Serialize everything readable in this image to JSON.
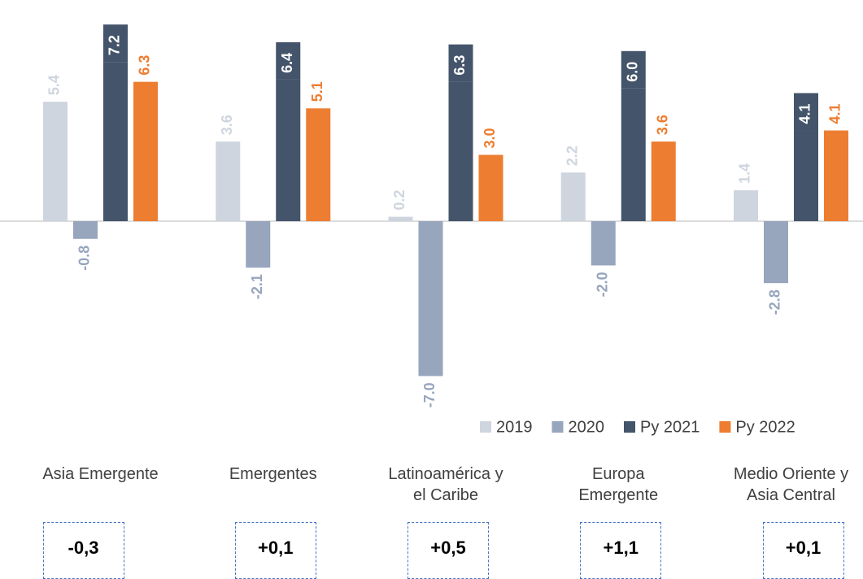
{
  "chart_data": {
    "type": "bar",
    "categories": [
      "Asia Emergente",
      "Emergentes",
      "Latinoamérica y\nel Caribe",
      "Europa\nEmergente",
      "Medio Oriente y\nAsia Central"
    ],
    "series": [
      {
        "name": "2019",
        "color": "#cfd5df",
        "values": [
          5.4,
          3.6,
          0.2,
          2.2,
          1.4
        ],
        "value_labels": [
          "5.4",
          "3.6",
          "0.2",
          "2.2",
          "1.4"
        ]
      },
      {
        "name": "2020",
        "color": "#97a5bd",
        "values": [
          -0.8,
          -2.1,
          -7.0,
          -2.0,
          -2.8
        ],
        "value_labels": [
          "-0.8",
          "-2.1",
          "-7.0",
          "-2.0",
          "-2.8"
        ]
      },
      {
        "name": "Py 2021",
        "color": "#44546a",
        "values": [
          7.2,
          6.4,
          6.3,
          6.0,
          4.1
        ],
        "value_labels": [
          "7.2",
          "6.4",
          "6.3",
          "6.0",
          "4.1"
        ]
      },
      {
        "name": "Py 2022",
        "color": "#ed7d31",
        "values": [
          6.3,
          5.1,
          3.0,
          3.6,
          4.1
        ],
        "value_labels": [
          "6.3",
          "5.1",
          "3.0",
          "3.6",
          "4.1"
        ]
      }
    ],
    "annotations": [
      "-0,3",
      "+0,1",
      "+0,5",
      "+1,1",
      "+0,1"
    ],
    "ylim": [
      -10,
      10
    ]
  }
}
